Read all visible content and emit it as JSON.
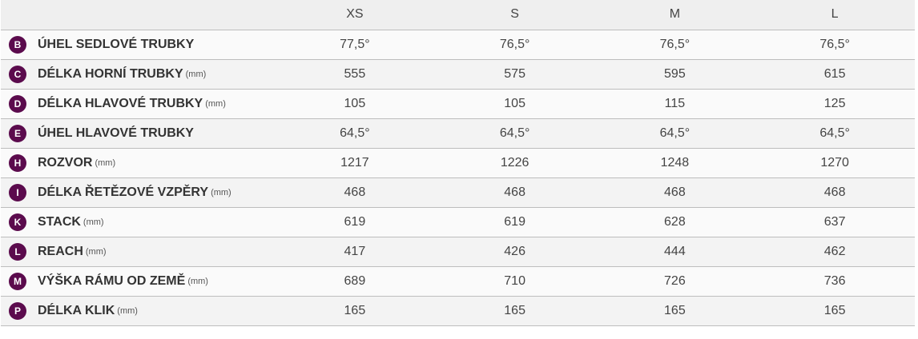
{
  "colors": {
    "badge": "#5b0b4d",
    "header_bg": "#efefef"
  },
  "sizes": [
    "XS",
    "S",
    "M",
    "L"
  ],
  "rows": [
    {
      "badge": "B",
      "name": "ÚHEL SEDLOVÉ TRUBKY",
      "unit": "",
      "values": [
        "77,5°",
        "76,5°",
        "76,5°",
        "76,5°"
      ]
    },
    {
      "badge": "C",
      "name": "DÉLKA HORNÍ TRUBKY",
      "unit": "(mm)",
      "values": [
        "555",
        "575",
        "595",
        "615"
      ]
    },
    {
      "badge": "D",
      "name": "DÉLKA HLAVOVÉ TRUBKY",
      "unit": "(mm)",
      "values": [
        "105",
        "105",
        "115",
        "125"
      ]
    },
    {
      "badge": "E",
      "name": "ÚHEL HLAVOVÉ TRUBKY",
      "unit": "",
      "values": [
        "64,5°",
        "64,5°",
        "64,5°",
        "64,5°"
      ]
    },
    {
      "badge": "H",
      "name": "ROZVOR",
      "unit": "(mm)",
      "values": [
        "1217",
        "1226",
        "1248",
        "1270"
      ]
    },
    {
      "badge": "I",
      "name": "DÉLKA ŘETĚZOVÉ VZPĚRY",
      "unit": "(mm)",
      "values": [
        "468",
        "468",
        "468",
        "468"
      ]
    },
    {
      "badge": "K",
      "name": "STACK",
      "unit": "(mm)",
      "values": [
        "619",
        "619",
        "628",
        "637"
      ]
    },
    {
      "badge": "L",
      "name": "REACH",
      "unit": "(mm)",
      "values": [
        "417",
        "426",
        "444",
        "462"
      ]
    },
    {
      "badge": "M",
      "name": "VÝŠKA RÁMU OD ZEMĚ",
      "unit": "(mm)",
      "values": [
        "689",
        "710",
        "726",
        "736"
      ]
    },
    {
      "badge": "P",
      "name": "DÉLKA KLIK",
      "unit": "(mm)",
      "values": [
        "165",
        "165",
        "165",
        "165"
      ]
    }
  ]
}
